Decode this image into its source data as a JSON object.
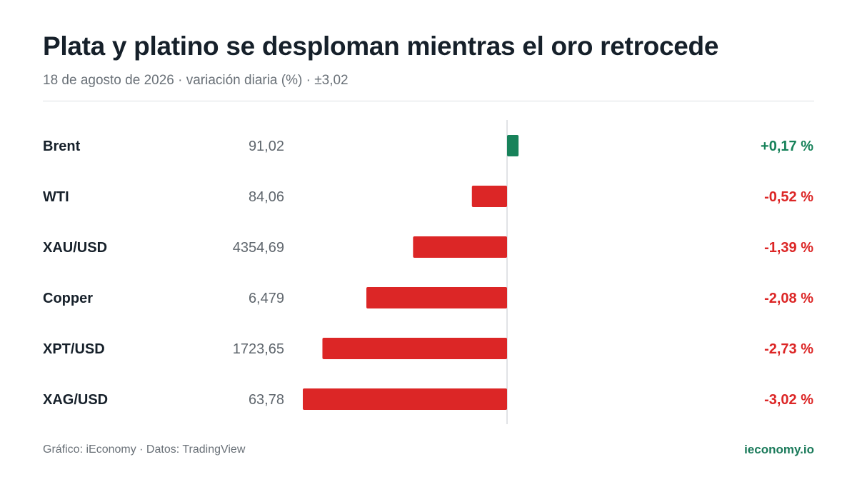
{
  "header": {
    "title": "Plata y platino se desploman mientras el oro retrocede",
    "subtitle": "18 de agosto de 2026 · variación diaria (%) · ±3,02"
  },
  "footer": {
    "credit": "Gráfico: iEconomy · Datos: TradingView",
    "brand": "ieconomy.io"
  },
  "colors": {
    "positive": "#17825a",
    "negative": "#dc2626",
    "label": "#16202a",
    "price": "#5f666d",
    "axis": "#d7dadd"
  },
  "chart_data": {
    "type": "bar",
    "orientation": "horizontal-diverging",
    "categories": [
      "Brent",
      "WTI",
      "XAU/USD",
      "Copper",
      "XPT/USD",
      "XAG/USD"
    ],
    "prices": [
      "91,02",
      "84,06",
      "4354,69",
      "6,479",
      "1723,65",
      "63,78"
    ],
    "values": [
      0.17,
      -0.52,
      -1.39,
      -2.08,
      -2.73,
      -3.02
    ],
    "value_labels": [
      "+0,17 %",
      "-0,52 %",
      "-1,39 %",
      "-2,08 %",
      "-2,73 %",
      "-3,02 %"
    ],
    "xlim": [
      -3.02,
      3.02
    ]
  }
}
